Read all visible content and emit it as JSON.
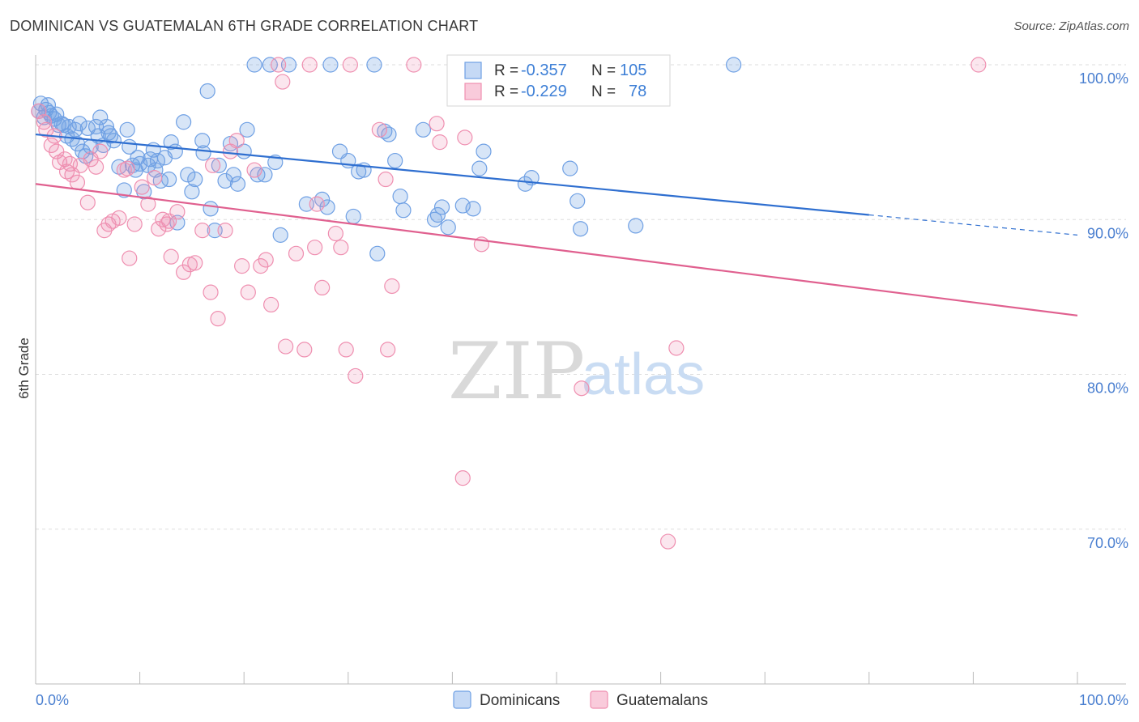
{
  "header": {
    "title": "DOMINICAN VS GUATEMALAN 6TH GRADE CORRELATION CHART",
    "source": "Source: ZipAtlas.com"
  },
  "watermark": {
    "zip": "ZIP",
    "atlas": "atlas"
  },
  "legend_box": {
    "rows": [
      {
        "r_label": "R =",
        "r_value": "-0.357",
        "n_label": "N =",
        "n_value": "105",
        "color": "#6fa0e4"
      },
      {
        "r_label": "R =",
        "r_value": "-0.229",
        "n_label": "N =",
        "n_value": "78",
        "color": "#ef8fb0"
      }
    ]
  },
  "bottom_legend": [
    "Dominicans",
    "Guatemalans"
  ],
  "chart_data": {
    "type": "scatter",
    "title": "DOMINICAN VS GUATEMALAN 6TH GRADE CORRELATION CHART",
    "xlabel": "",
    "ylabel": "6th Grade",
    "xlim": [
      0,
      100
    ],
    "ylim": [
      60,
      100
    ],
    "x_tick_labels": [
      "0.0%",
      "100.0%"
    ],
    "y_ticks": [
      70,
      80,
      90,
      100
    ],
    "y_tick_labels": [
      "70.0%",
      "80.0%",
      "90.0%",
      "100.0%"
    ],
    "grid": true,
    "legend_position": "top-center",
    "series": [
      {
        "name": "Dominicans",
        "color": "#6fa0e4",
        "line_color": "#2f6fd0",
        "trend": {
          "x0": 0,
          "y0": 95.5,
          "x1": 80,
          "y1": 90.3,
          "dashed_to": 100,
          "dashed_y": 89.0
        },
        "points": [
          [
            0.5,
            97.5
          ],
          [
            0.8,
            96.6
          ],
          [
            1.0,
            97.1
          ],
          [
            1.2,
            97.4
          ],
          [
            1.5,
            96.7
          ],
          [
            1.8,
            96.5
          ],
          [
            2.0,
            96.8
          ],
          [
            2.5,
            96.2
          ],
          [
            2.7,
            96.1
          ],
          [
            3.0,
            95.4
          ],
          [
            3.2,
            96.0
          ],
          [
            3.5,
            95.2
          ],
          [
            4.0,
            94.9
          ],
          [
            4.2,
            96.2
          ],
          [
            4.5,
            94.4
          ],
          [
            5.0,
            95.9
          ],
          [
            5.3,
            94.7
          ],
          [
            5.8,
            96.0
          ],
          [
            6.0,
            95.4
          ],
          [
            6.2,
            96.6
          ],
          [
            6.5,
            94.8
          ],
          [
            6.8,
            96.0
          ],
          [
            7.0,
            95.6
          ],
          [
            7.5,
            95.1
          ],
          [
            8.0,
            93.4
          ],
          [
            8.5,
            91.9
          ],
          [
            8.8,
            95.8
          ],
          [
            9.0,
            94.7
          ],
          [
            9.3,
            93.5
          ],
          [
            9.6,
            93.2
          ],
          [
            10.0,
            93.6
          ],
          [
            10.4,
            91.8
          ],
          [
            10.8,
            93.5
          ],
          [
            11.0,
            93.9
          ],
          [
            11.3,
            94.5
          ],
          [
            11.7,
            93.8
          ],
          [
            12.0,
            92.5
          ],
          [
            12.4,
            94.0
          ],
          [
            12.8,
            92.6
          ],
          [
            13.0,
            95.0
          ],
          [
            13.4,
            94.4
          ],
          [
            13.6,
            89.8
          ],
          [
            14.2,
            96.3
          ],
          [
            14.6,
            92.9
          ],
          [
            15.0,
            91.8
          ],
          [
            15.3,
            92.6
          ],
          [
            16.0,
            95.1
          ],
          [
            16.5,
            98.3
          ],
          [
            16.8,
            90.7
          ],
          [
            17.2,
            89.3
          ],
          [
            17.6,
            93.5
          ],
          [
            18.2,
            92.5
          ],
          [
            18.7,
            94.9
          ],
          [
            19.0,
            92.9
          ],
          [
            19.4,
            92.3
          ],
          [
            20.0,
            94.4
          ],
          [
            20.3,
            95.8
          ],
          [
            21.0,
            100.0
          ],
          [
            21.3,
            92.9
          ],
          [
            22.0,
            92.9
          ],
          [
            22.5,
            100.0
          ],
          [
            23.0,
            93.7
          ],
          [
            23.5,
            89.0
          ],
          [
            24.3,
            100.0
          ],
          [
            26.0,
            91.0
          ],
          [
            27.5,
            91.3
          ],
          [
            28.0,
            90.8
          ],
          [
            28.3,
            100.0
          ],
          [
            29.2,
            94.4
          ],
          [
            30.0,
            93.8
          ],
          [
            30.5,
            90.2
          ],
          [
            31.0,
            93.1
          ],
          [
            31.5,
            93.2
          ],
          [
            32.5,
            100.0
          ],
          [
            32.8,
            87.8
          ],
          [
            33.5,
            95.7
          ],
          [
            33.9,
            95.5
          ],
          [
            34.5,
            93.8
          ],
          [
            35.0,
            91.5
          ],
          [
            35.3,
            90.6
          ],
          [
            37.2,
            95.8
          ],
          [
            38.3,
            90.0
          ],
          [
            38.6,
            90.3
          ],
          [
            39.0,
            90.8
          ],
          [
            39.6,
            89.5
          ],
          [
            41.0,
            90.9
          ],
          [
            42.0,
            90.7
          ],
          [
            42.6,
            93.3
          ],
          [
            43.0,
            94.4
          ],
          [
            47.0,
            92.3
          ],
          [
            47.6,
            92.7
          ],
          [
            51.3,
            93.3
          ],
          [
            52.0,
            91.2
          ],
          [
            52.3,
            89.4
          ],
          [
            57.6,
            89.6
          ],
          [
            67.0,
            100.0
          ],
          [
            0.3,
            97.0
          ],
          [
            1.3,
            96.9
          ],
          [
            2.2,
            96.1
          ],
          [
            3.8,
            95.8
          ],
          [
            4.8,
            94.1
          ],
          [
            7.2,
            95.4
          ],
          [
            9.8,
            94.0
          ],
          [
            11.5,
            93.2
          ],
          [
            16.1,
            94.3
          ]
        ]
      },
      {
        "name": "Guatemalans",
        "color": "#ef8fb0",
        "line_color": "#e0608f",
        "trend": {
          "x0": 0,
          "y0": 92.3,
          "x1": 100,
          "y1": 83.8
        },
        "points": [
          [
            0.3,
            97.0
          ],
          [
            1.0,
            95.8
          ],
          [
            1.5,
            94.8
          ],
          [
            2.0,
            94.4
          ],
          [
            2.3,
            93.7
          ],
          [
            2.8,
            93.9
          ],
          [
            3.3,
            93.6
          ],
          [
            3.5,
            92.9
          ],
          [
            4.0,
            92.4
          ],
          [
            4.3,
            93.5
          ],
          [
            5.0,
            91.1
          ],
          [
            5.3,
            93.9
          ],
          [
            5.8,
            93.4
          ],
          [
            6.2,
            94.4
          ],
          [
            6.6,
            89.3
          ],
          [
            7.0,
            89.7
          ],
          [
            7.4,
            89.9
          ],
          [
            8.0,
            90.1
          ],
          [
            8.5,
            93.2
          ],
          [
            9.0,
            87.5
          ],
          [
            9.5,
            89.7
          ],
          [
            10.2,
            92.1
          ],
          [
            10.8,
            91.0
          ],
          [
            11.4,
            92.7
          ],
          [
            11.8,
            89.4
          ],
          [
            12.2,
            90.0
          ],
          [
            12.8,
            89.9
          ],
          [
            13.0,
            87.6
          ],
          [
            13.6,
            90.5
          ],
          [
            14.2,
            86.6
          ],
          [
            14.8,
            87.1
          ],
          [
            15.3,
            87.2
          ],
          [
            16.0,
            89.3
          ],
          [
            16.8,
            85.3
          ],
          [
            17.5,
            83.6
          ],
          [
            18.2,
            89.3
          ],
          [
            18.7,
            94.4
          ],
          [
            19.3,
            95.1
          ],
          [
            19.8,
            87.0
          ],
          [
            20.4,
            85.3
          ],
          [
            21.0,
            93.2
          ],
          [
            21.6,
            87.0
          ],
          [
            22.1,
            87.4
          ],
          [
            22.6,
            84.5
          ],
          [
            23.3,
            100.0
          ],
          [
            23.7,
            98.9
          ],
          [
            24.0,
            81.8
          ],
          [
            25.0,
            87.8
          ],
          [
            25.8,
            81.6
          ],
          [
            26.3,
            100.0
          ],
          [
            26.8,
            88.2
          ],
          [
            27.5,
            85.6
          ],
          [
            28.8,
            89.1
          ],
          [
            29.3,
            88.2
          ],
          [
            29.8,
            81.6
          ],
          [
            30.2,
            100.0
          ],
          [
            30.7,
            79.9
          ],
          [
            33.0,
            95.8
          ],
          [
            33.6,
            92.6
          ],
          [
            33.8,
            81.6
          ],
          [
            34.2,
            85.7
          ],
          [
            36.3,
            100.0
          ],
          [
            38.5,
            96.2
          ],
          [
            38.8,
            95.0
          ],
          [
            41.0,
            73.3
          ],
          [
            41.2,
            95.3
          ],
          [
            42.8,
            88.4
          ],
          [
            52.4,
            79.1
          ],
          [
            60.7,
            69.2
          ],
          [
            61.5,
            81.7
          ],
          [
            90.5,
            100.0
          ],
          [
            0.8,
            96.3
          ],
          [
            1.8,
            95.4
          ],
          [
            3.0,
            93.1
          ],
          [
            8.8,
            93.3
          ],
          [
            12.6,
            89.7
          ],
          [
            17.0,
            93.5
          ],
          [
            27.0,
            91.0
          ]
        ]
      }
    ]
  }
}
